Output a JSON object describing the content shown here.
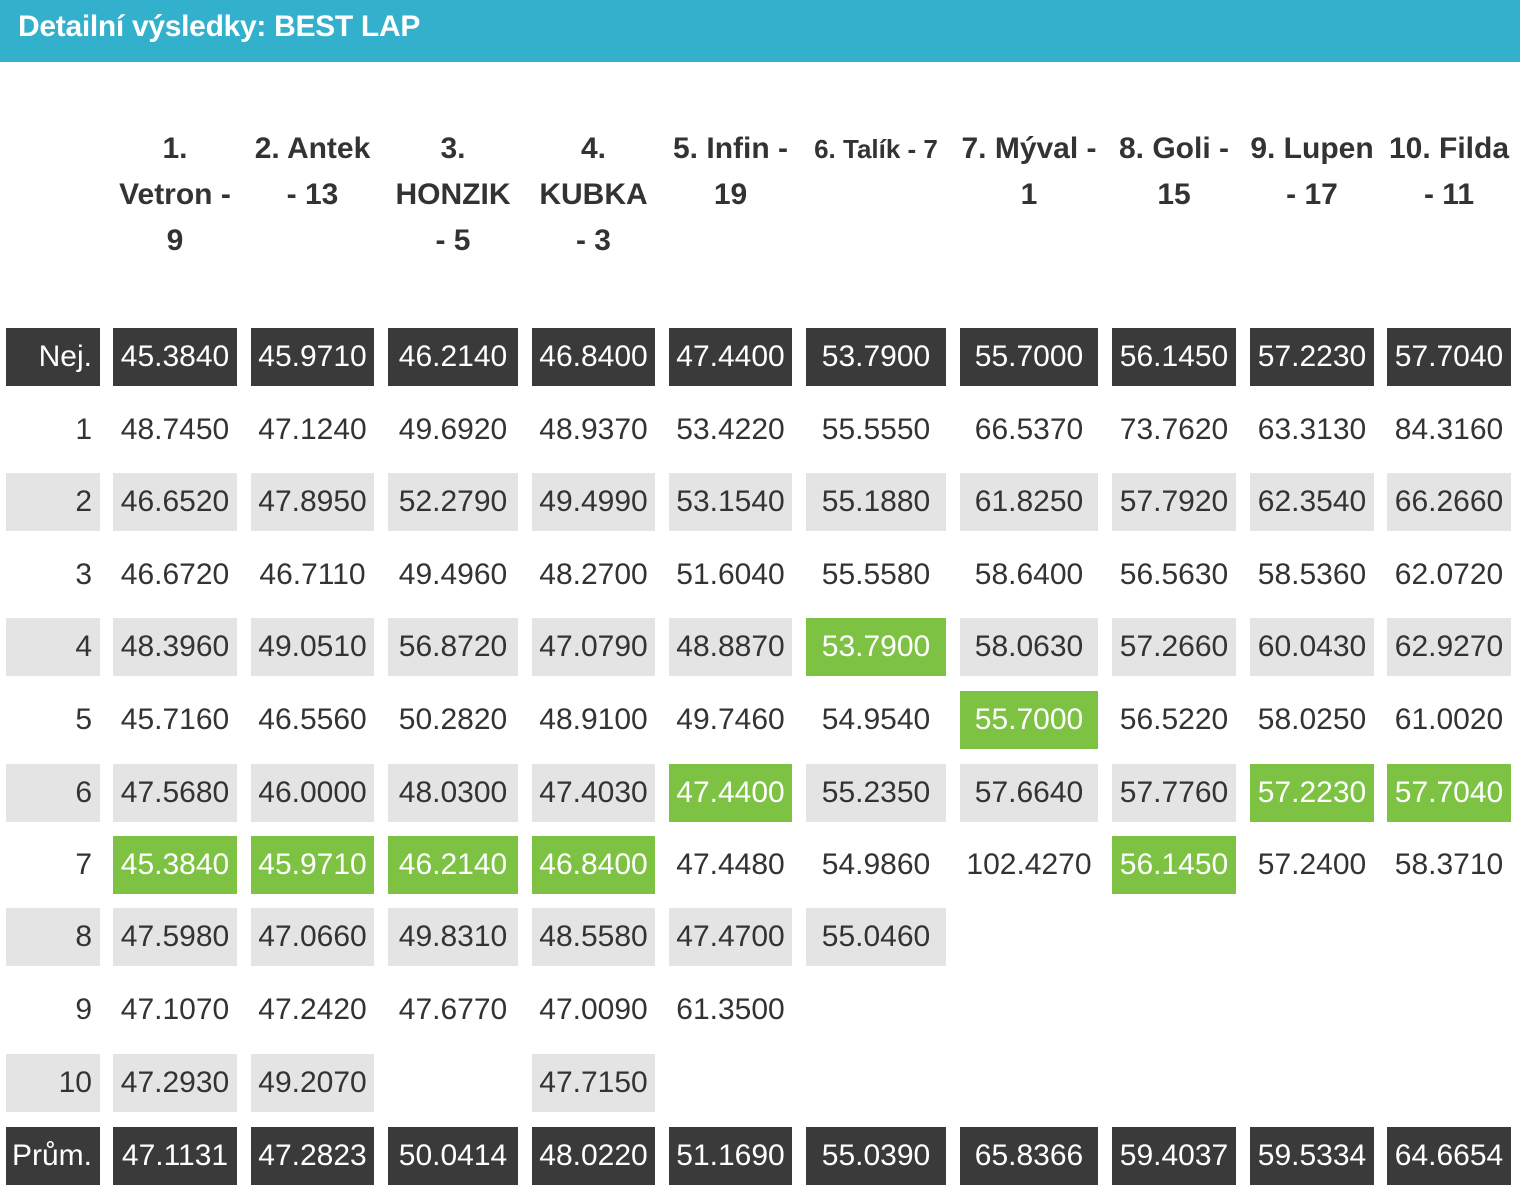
{
  "title": "Detailní výsledky: BEST LAP",
  "drivers": [
    "1. Vetron - 9",
    "2. Antek - 13",
    "3. HONZIK - 5",
    "4. KUBKA - 3",
    "5. Infin - 19",
    "6. Talík - 7",
    "7. Mýval - 1",
    "8. Goli - 15",
    "9. Lupen - 17",
    "10. Filda - 11"
  ],
  "best_label": "Nej.",
  "best": [
    "45.3840",
    "45.9710",
    "46.2140",
    "46.8400",
    "47.4400",
    "53.7900",
    "55.7000",
    "56.1450",
    "57.2230",
    "57.7040"
  ],
  "laps": [
    {
      "lap": "1",
      "times": [
        "48.7450",
        "47.1240",
        "49.6920",
        "48.9370",
        "53.4220",
        "55.5550",
        "66.5370",
        "73.7620",
        "63.3130",
        "84.3160"
      ]
    },
    {
      "lap": "2",
      "times": [
        "46.6520",
        "47.8950",
        "52.2790",
        "49.4990",
        "53.1540",
        "55.1880",
        "61.8250",
        "57.7920",
        "62.3540",
        "66.2660"
      ]
    },
    {
      "lap": "3",
      "times": [
        "46.6720",
        "46.7110",
        "49.4960",
        "48.2700",
        "51.6040",
        "55.5580",
        "58.6400",
        "56.5630",
        "58.5360",
        "62.0720"
      ]
    },
    {
      "lap": "4",
      "times": [
        "48.3960",
        "49.0510",
        "56.8720",
        "47.0790",
        "48.8870",
        "53.7900",
        "58.0630",
        "57.2660",
        "60.0430",
        "62.9270"
      ]
    },
    {
      "lap": "5",
      "times": [
        "45.7160",
        "46.5560",
        "50.2820",
        "48.9100",
        "49.7460",
        "54.9540",
        "55.7000",
        "56.5220",
        "58.0250",
        "61.0020"
      ]
    },
    {
      "lap": "6",
      "times": [
        "47.5680",
        "46.0000",
        "48.0300",
        "47.4030",
        "47.4400",
        "55.2350",
        "57.6640",
        "57.7760",
        "57.2230",
        "57.7040"
      ]
    },
    {
      "lap": "7",
      "times": [
        "45.3840",
        "45.9710",
        "46.2140",
        "46.8400",
        "47.4480",
        "54.9860",
        "102.4270",
        "56.1450",
        "57.2400",
        "58.3710"
      ]
    },
    {
      "lap": "8",
      "times": [
        "47.5980",
        "47.0660",
        "49.8310",
        "48.5580",
        "47.4700",
        "55.0460",
        "",
        "",
        "",
        ""
      ]
    },
    {
      "lap": "9",
      "times": [
        "47.1070",
        "47.2420",
        "47.6770",
        "47.0090",
        "61.3500",
        "",
        "",
        "",
        "",
        ""
      ]
    },
    {
      "lap": "10",
      "times": [
        "47.2930",
        "49.2070",
        "",
        "47.7150",
        "",
        "",
        "",
        "",
        "",
        ""
      ]
    }
  ],
  "highlight": [
    {
      "lap": "7",
      "driver": "1"
    },
    {
      "lap": "7",
      "driver": "2"
    },
    {
      "lap": "7",
      "driver": "3"
    },
    {
      "lap": "7",
      "driver": "4"
    },
    {
      "lap": "6",
      "driver": "5"
    },
    {
      "lap": "4",
      "driver": "6"
    },
    {
      "lap": "5",
      "driver": "7"
    },
    {
      "lap": "7",
      "driver": "8"
    },
    {
      "lap": "6",
      "driver": "9"
    },
    {
      "lap": "6",
      "driver": "10"
    }
  ],
  "avg_label": "Prům.",
  "avg": [
    "47.1131",
    "47.2823",
    "50.0414",
    "48.0220",
    "51.1690",
    "55.0390",
    "65.8366",
    "59.4037",
    "59.5334",
    "64.6654"
  ],
  "colors": {
    "header_bg": "#33b0cc",
    "dark_row": "#3a3a3a",
    "alt_row": "#e4e4e4",
    "best_highlight": "#7dc242"
  }
}
